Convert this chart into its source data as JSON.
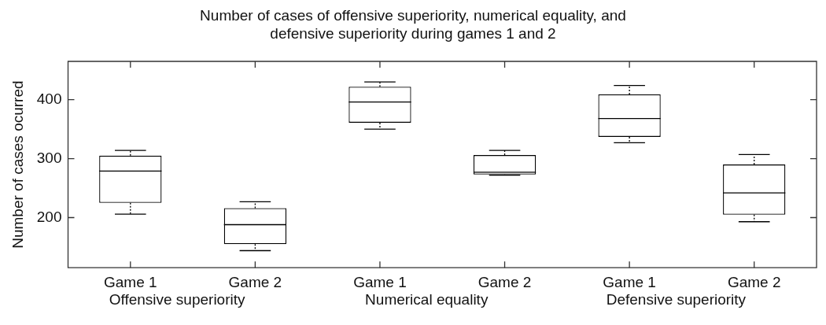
{
  "chart_data": {
    "type": "box",
    "title": "Number of cases of offensive superiority, numerical equality, and defensive superiority during games 1 and 2",
    "ylabel": "Number of cases ocurred",
    "categories": [
      "Game 1",
      "Game 2",
      "Game 1",
      "Game 2",
      "Game 1",
      "Game 2"
    ],
    "boxes": [
      {
        "low": 206,
        "q1": 225,
        "median": 279,
        "q3": 305,
        "high": 314
      },
      {
        "low": 144,
        "q1": 155,
        "median": 188,
        "q3": 216,
        "high": 227
      },
      {
        "low": 350,
        "q1": 361,
        "median": 396,
        "q3": 422,
        "high": 430
      },
      {
        "low": 272,
        "q1": 273,
        "median": 277,
        "q3": 306,
        "high": 314
      },
      {
        "low": 327,
        "q1": 337,
        "median": 368,
        "q3": 409,
        "high": 424
      },
      {
        "low": 193,
        "q1": 205,
        "median": 242,
        "q3": 290,
        "high": 307
      }
    ],
    "color": "#000000",
    "ylim": [
      115,
      465
    ],
    "yticks": [
      200,
      300,
      400
    ],
    "annotations": [
      "Offensive superiority",
      "Numerical equality",
      "Defensive superiority"
    ]
  }
}
